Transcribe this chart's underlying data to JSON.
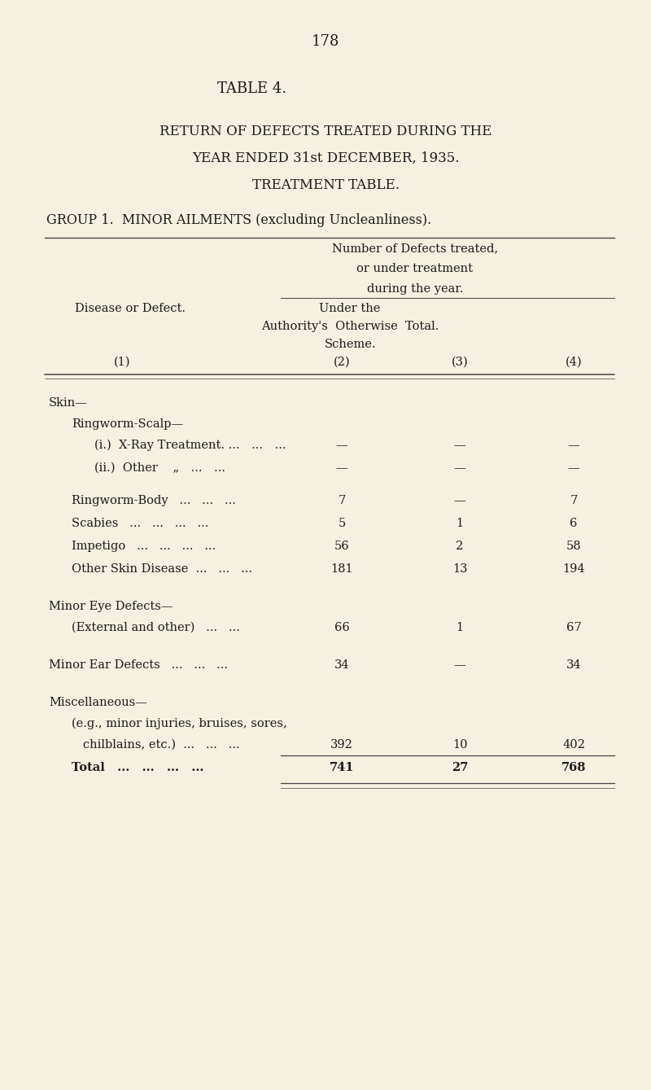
{
  "page_number": "178",
  "table_number": "TABLE 4.",
  "title_lines": [
    "RETURN OF DEFECTS TREATED DURING THE",
    "YEAR ENDED 31st DECEMBER, 1935.",
    "TREATMENT TABLE."
  ],
  "group_line": "GROUP 1.  MINOR AILMENTS (excluding Uncleanliness).",
  "bg_color": "#f5f0e0",
  "text_color": "#1a1a1a",
  "line_color": "#444444",
  "rows": [
    {
      "label": "Skin—",
      "indent": 0,
      "col2": "",
      "col3": "",
      "col4": "",
      "is_section": true,
      "extra_above": 0.18
    },
    {
      "label": "Ringworm-Scalp—",
      "indent": 1,
      "col2": "",
      "col3": "",
      "col4": "",
      "is_section": true,
      "extra_above": 0.0
    },
    {
      "label": "(i.)  X-Ray Treatment. ... ... ...",
      "indent": 2,
      "col2": "—",
      "col3": "—",
      "col4": "—",
      "is_section": false,
      "extra_above": 0.0
    },
    {
      "label": "(ii.)  Other    „ ... ...",
      "indent": 2,
      "col2": "—",
      "col3": "—",
      "col4": "—",
      "is_section": false,
      "extra_above": 0.0
    },
    {
      "label": "Ringworm-Body   ...   ...   ...",
      "indent": 1,
      "col2": "7",
      "col3": "—",
      "col4": "7",
      "is_section": false,
      "extra_above": 0.12
    },
    {
      "label": "Scabies   ...   ...   ...   ...",
      "indent": 1,
      "col2": "5",
      "col3": "1",
      "col4": "6",
      "is_section": false,
      "extra_above": 0.0
    },
    {
      "label": "Impetigo   ...   ...   ...   ...",
      "indent": 1,
      "col2": "56",
      "col3": "2",
      "col4": "58",
      "is_section": false,
      "extra_above": 0.0
    },
    {
      "label": "Other Skin Disease  ...   ...   ...",
      "indent": 1,
      "col2": "181",
      "col3": "13",
      "col4": "194",
      "is_section": false,
      "extra_above": 0.0
    },
    {
      "label": "Minor Eye Defects—",
      "indent": 0,
      "col2": "",
      "col3": "",
      "col4": "",
      "is_section": true,
      "extra_above": 0.18
    },
    {
      "label": "(External and other)   ...   ...",
      "indent": 1,
      "col2": "66",
      "col3": "1",
      "col4": "67",
      "is_section": false,
      "extra_above": 0.0
    },
    {
      "label": "Minor Ear Defects   ...   ...   ...",
      "indent": 0,
      "col2": "34",
      "col3": "—",
      "col4": "34",
      "is_section": false,
      "extra_above": 0.18
    },
    {
      "label": "Miscellaneous—",
      "indent": 0,
      "col2": "",
      "col3": "",
      "col4": "",
      "is_section": true,
      "extra_above": 0.18
    },
    {
      "label": "(e.g., minor injuries, bruises, sores,",
      "indent": 1,
      "col2": "",
      "col3": "",
      "col4": "",
      "is_section": false,
      "extra_above": 0.0,
      "multiline_first": true
    },
    {
      "label": "   chilblains, etc.)  ...   ...   ...",
      "indent": 1,
      "col2": "392",
      "col3": "10",
      "col4": "402",
      "is_section": false,
      "extra_above": 0.0,
      "is_misc_second": true
    },
    {
      "label": "Total   ...   ...   ...   ...",
      "indent": 1,
      "col2": "741",
      "col3": "27",
      "col4": "768",
      "is_section": false,
      "extra_above": 0.0,
      "is_total": true
    }
  ]
}
